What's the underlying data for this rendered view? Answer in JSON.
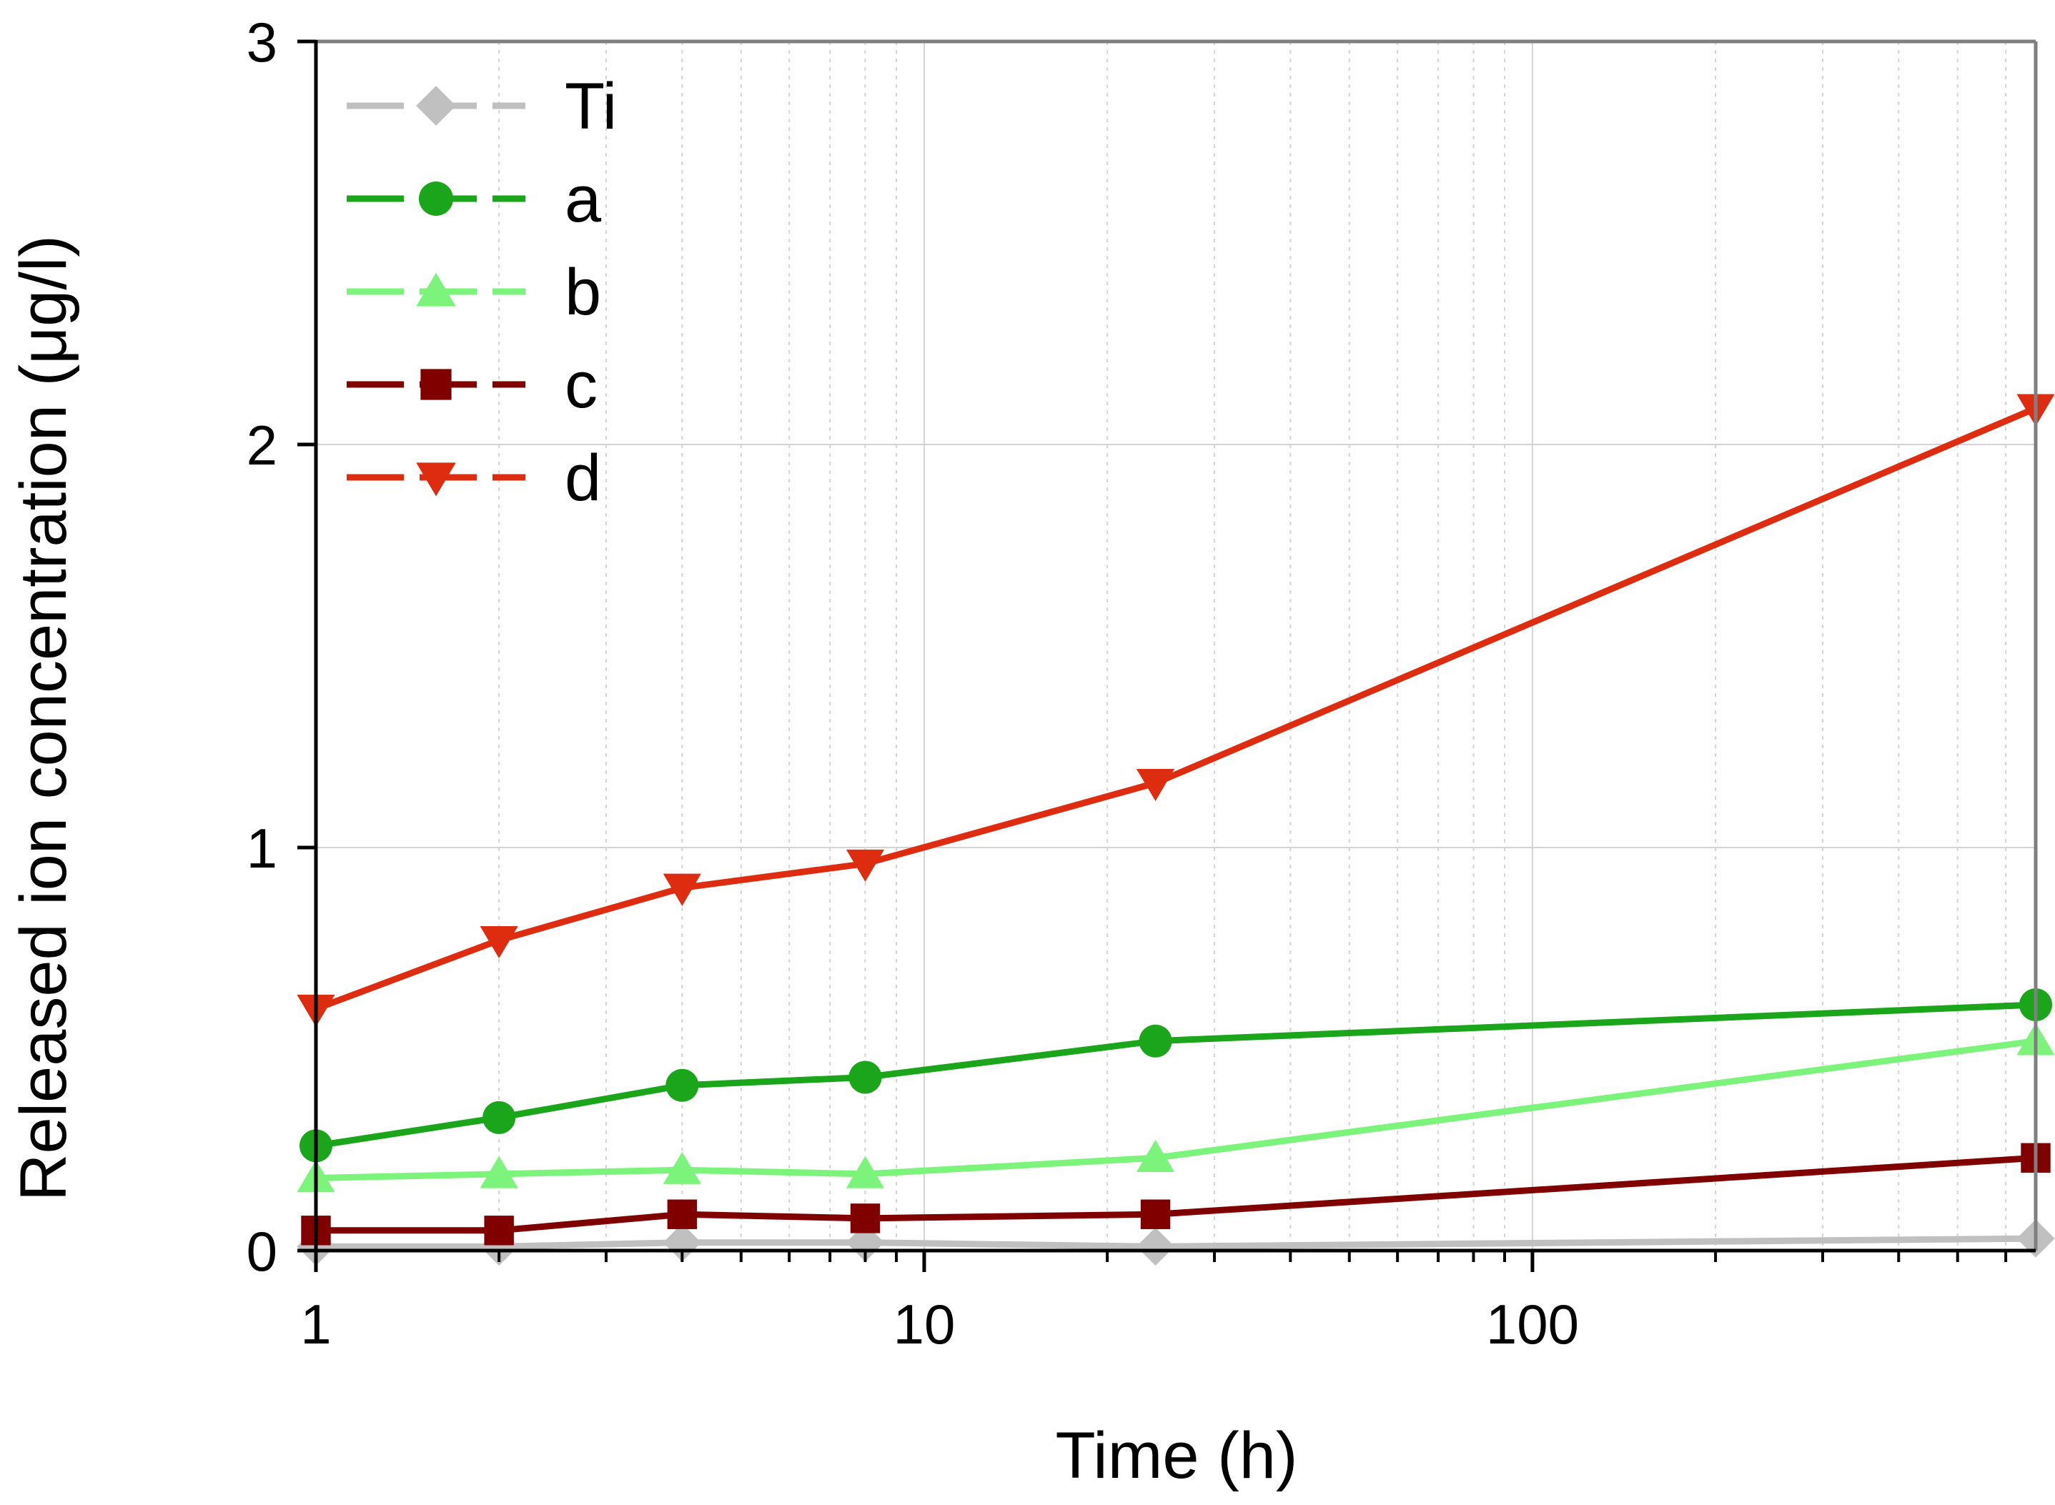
{
  "chart_data": {
    "type": "line",
    "title": "",
    "xlabel": "Time (h)",
    "ylabel": "Released ion concentration (μg/l)",
    "x_scale": "log",
    "xlim": [
      1,
      672
    ],
    "ylim": [
      0,
      3
    ],
    "x_ticks": [
      1,
      10,
      100
    ],
    "x_tick_labels": [
      "1",
      "10",
      "100"
    ],
    "y_ticks": [
      0,
      1,
      2,
      3
    ],
    "y_tick_labels": [
      "0",
      "1",
      "2",
      "3"
    ],
    "grid": true,
    "legend_position": "top-left",
    "x": [
      1,
      2,
      4,
      8,
      24,
      672
    ],
    "series": [
      {
        "name": "Ti",
        "color": "#c0c0c0",
        "marker": "diamond",
        "values": [
          0.01,
          0.01,
          0.02,
          0.02,
          0.01,
          0.03
        ]
      },
      {
        "name": "a",
        "color": "#1aa51a",
        "marker": "circle",
        "values": [
          0.26,
          0.33,
          0.41,
          0.43,
          0.52,
          0.61
        ]
      },
      {
        "name": "b",
        "color": "#7cf47c",
        "marker": "triangle-up",
        "values": [
          0.18,
          0.19,
          0.2,
          0.19,
          0.23,
          0.52
        ]
      },
      {
        "name": "c",
        "color": "#800000",
        "marker": "square",
        "values": [
          0.05,
          0.05,
          0.09,
          0.08,
          0.09,
          0.23
        ]
      },
      {
        "name": "d",
        "color": "#dd2c0f",
        "marker": "triangle-down",
        "values": [
          0.6,
          0.77,
          0.9,
          0.96,
          1.16,
          2.09
        ]
      }
    ]
  }
}
